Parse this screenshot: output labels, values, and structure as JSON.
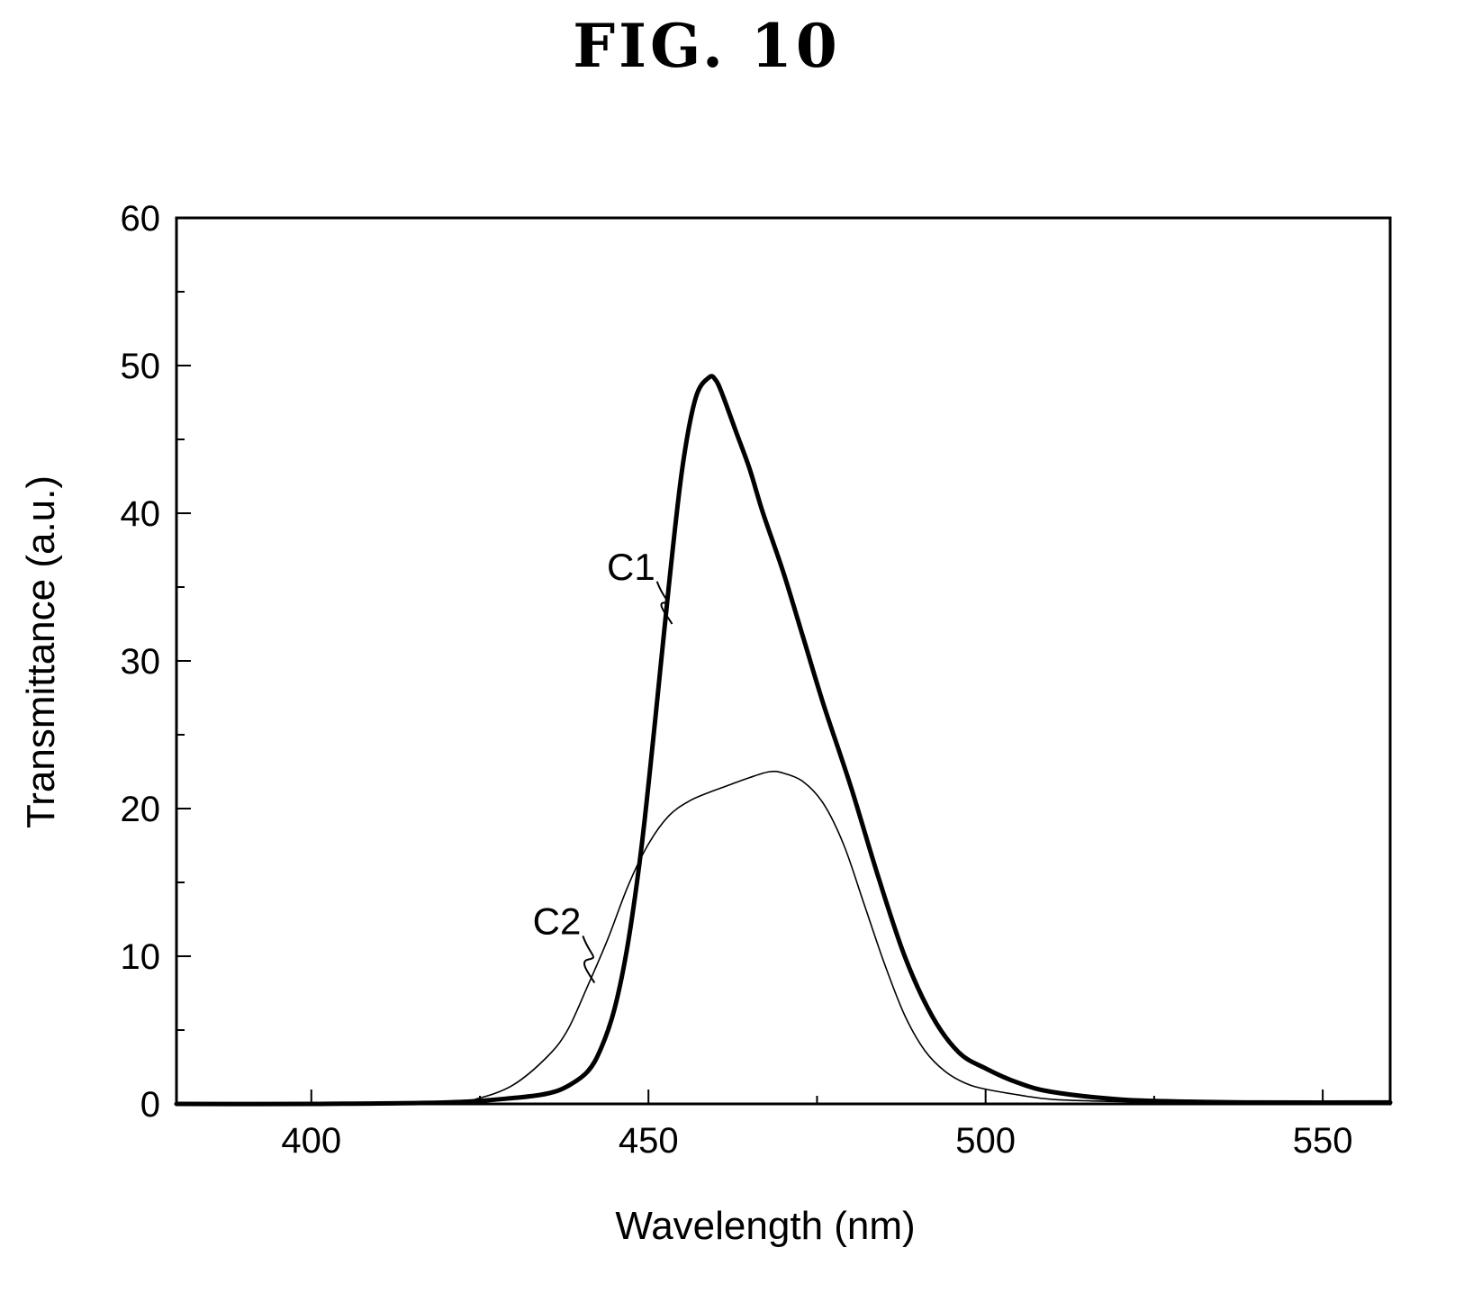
{
  "figure": {
    "title": "FIG. 10"
  },
  "chart_data": {
    "type": "line",
    "title": "",
    "xlabel": "Wavelength (nm)",
    "ylabel": "Transmittance (a.u.)",
    "xlim": [
      380,
      560
    ],
    "ylim": [
      0,
      60
    ],
    "x_ticks": [
      400,
      450,
      500,
      550
    ],
    "x_minor_ticks": [
      425,
      475,
      525
    ],
    "y_ticks": [
      0,
      10,
      20,
      30,
      40,
      50,
      60
    ],
    "y_minor_ticks": [
      5,
      15,
      25,
      35,
      45,
      55
    ],
    "grid": false,
    "legend": "none",
    "series": [
      {
        "name": "C1",
        "line": "thick",
        "x": [
          380,
          400,
          420,
          430,
          435,
          438,
          441,
          443,
          445,
          447,
          449,
          451,
          453,
          455,
          457,
          459,
          460,
          461,
          463,
          465,
          467,
          470,
          473,
          476,
          480,
          484,
          488,
          492,
          496,
          500,
          505,
          510,
          520,
          530,
          540,
          560
        ],
        "y": [
          0,
          0,
          0.1,
          0.4,
          0.7,
          1.2,
          2.2,
          3.8,
          6.5,
          11,
          17.5,
          26,
          35,
          43,
          47.8,
          49.2,
          49.0,
          48.0,
          45.5,
          43,
          40,
          36,
          31.5,
          27,
          21.5,
          15.5,
          10,
          6,
          3.5,
          2.4,
          1.4,
          0.8,
          0.3,
          0.15,
          0.1,
          0.1
        ]
      },
      {
        "name": "C2",
        "line": "thin",
        "x": [
          380,
          400,
          420,
          425,
          430,
          435,
          438,
          441,
          444,
          447,
          450,
          453,
          456,
          459,
          462,
          465,
          468,
          470,
          473,
          476,
          479,
          482,
          485,
          488,
          491,
          494,
          497,
          500,
          505,
          510,
          520,
          530,
          540,
          560
        ],
        "y": [
          0,
          0,
          0.1,
          0.4,
          1.3,
          3.2,
          5.0,
          8.0,
          11.2,
          14.8,
          17.6,
          19.5,
          20.5,
          21.1,
          21.6,
          22.1,
          22.5,
          22.4,
          21.8,
          20.3,
          17.5,
          13.5,
          9.5,
          6.0,
          3.6,
          2.2,
          1.4,
          1.0,
          0.6,
          0.3,
          0.15,
          0.1,
          0.05,
          0.0
        ]
      }
    ],
    "annotations": [
      {
        "text": "C1",
        "series": "C1",
        "label_at": [
          451,
          35.5
        ],
        "points_to": [
          453.5,
          32.5
        ]
      },
      {
        "text": "C2",
        "series": "C2",
        "label_at": [
          440,
          11.5
        ],
        "points_to": [
          442,
          8.2
        ]
      }
    ]
  }
}
